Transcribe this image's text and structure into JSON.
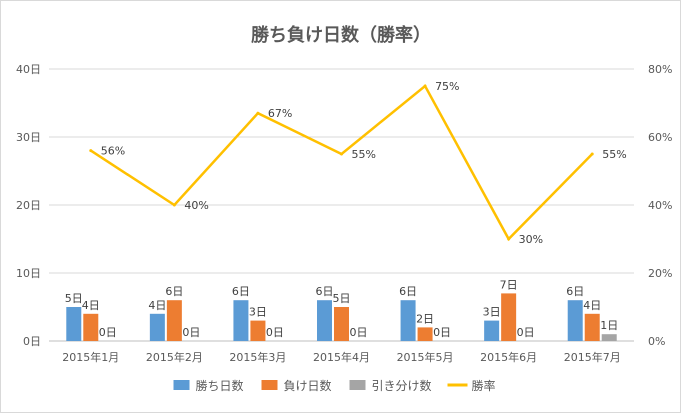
{
  "chart_data": {
    "type": "bar",
    "title": "勝ち負け日数（勝率）",
    "categories": [
      "2015年1月",
      "2015年2月",
      "2015年3月",
      "2015年4月",
      "2015年5月",
      "2015年6月",
      "2015年7月"
    ],
    "series": [
      {
        "name": "勝ち日数",
        "type": "bar",
        "axis": "left",
        "color": "#5b9bd5",
        "values": [
          5,
          4,
          6,
          6,
          6,
          3,
          6
        ],
        "labels": [
          "5日",
          "4日",
          "6日",
          "6日",
          "6日",
          "3日",
          "6日"
        ]
      },
      {
        "name": "負け日数",
        "type": "bar",
        "axis": "left",
        "color": "#ed7d31",
        "values": [
          4,
          6,
          3,
          5,
          2,
          7,
          4
        ],
        "labels": [
          "4日",
          "6日",
          "3日",
          "5日",
          "2日",
          "7日",
          "4日"
        ]
      },
      {
        "name": "引き分け数",
        "type": "bar",
        "axis": "left",
        "color": "#a5a5a5",
        "values": [
          0,
          0,
          0,
          0,
          0,
          0,
          1
        ],
        "labels": [
          "0日",
          "0日",
          "0日",
          "0日",
          "0日",
          "0日",
          "1日"
        ]
      },
      {
        "name": "勝率",
        "type": "line",
        "axis": "right",
        "color": "#ffc000",
        "values": [
          56,
          40,
          67,
          55,
          75,
          30,
          55
        ],
        "labels": [
          "56%",
          "40%",
          "67%",
          "55%",
          "75%",
          "30%",
          "55%"
        ]
      }
    ],
    "y_left": {
      "ylim": [
        0,
        40
      ],
      "ticks": [
        "0日",
        "10日",
        "20日",
        "30日",
        "40日"
      ]
    },
    "y_right": {
      "ylim": [
        0,
        80
      ],
      "ticks": [
        "0%",
        "20%",
        "40%",
        "60%",
        "80%"
      ]
    },
    "grid": true,
    "legend_position": "bottom"
  }
}
